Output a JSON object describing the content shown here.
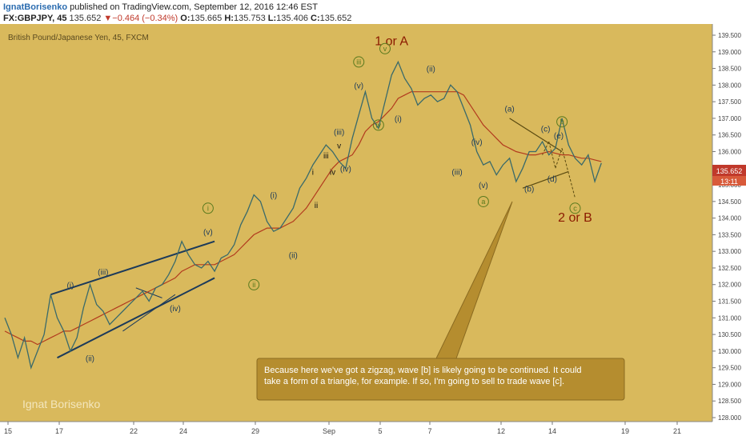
{
  "header": {
    "author": "IgnatBorisenko",
    "published_text": "published on TradingView.com, September 12, 2016 12:46 EST",
    "symbol": "FX:GBPJPY, 45",
    "last": "135.652",
    "change": "−0.464 (−0.34%)",
    "open_label": "O:",
    "open": "135.665",
    "high_label": "H:",
    "high": "135.753",
    "low_label": "L:",
    "low": "135.406",
    "close_label": "C:",
    "close": "135.652"
  },
  "chart_data": {
    "type": "line",
    "title": "British Pound/Japanese Yen, 45, FXCM",
    "watermark": "Ignat Borisenko",
    "xlabel": "",
    "ylabel": "",
    "ylim": [
      128.0,
      139.5
    ],
    "y_ticks": [
      "128.000",
      "128.500",
      "129.000",
      "129.500",
      "130.000",
      "130.500",
      "131.000",
      "131.500",
      "132.000",
      "132.500",
      "133.000",
      "133.500",
      "134.000",
      "134.500",
      "135.000",
      "135.500",
      "136.000",
      "136.500",
      "137.000",
      "137.500",
      "138.000",
      "138.500",
      "139.000",
      "139.500"
    ],
    "x_ticks": [
      "15",
      "17",
      "22",
      "24",
      "29",
      "Sep",
      "5",
      "7",
      "12",
      "14",
      "19",
      "21"
    ],
    "last_price_label": "135.652",
    "countdown_label": "13:11",
    "colors": {
      "background": "#d9b95c",
      "price": "#3a6a6a",
      "ma": "#b23a1e",
      "wave_primary": "#8b1a00",
      "wave_green": "#5a7a1e",
      "wave_blue": "#1c3a5a",
      "note_bg": "#b58d2f"
    },
    "series": [
      {
        "values": [
          131.0,
          130.5,
          129.8,
          130.4,
          129.5,
          130.0,
          130.5,
          131.7,
          131.0,
          130.6,
          130.0,
          130.4,
          131.3,
          132.0,
          131.4,
          131.2,
          130.8,
          131.0,
          131.2,
          131.4,
          131.6,
          131.8,
          131.5,
          131.9,
          132.0,
          132.3,
          132.7,
          133.3,
          132.9,
          132.6,
          132.5,
          132.7,
          132.4,
          132.8,
          132.9,
          133.2,
          133.8,
          134.2,
          134.7,
          134.5,
          133.9,
          133.6,
          133.7,
          134.0,
          134.3,
          134.9,
          135.2,
          135.6,
          135.9,
          136.2,
          136.0,
          135.7,
          135.5,
          136.4,
          137.1,
          137.8,
          137.0,
          136.7,
          137.5,
          138.3,
          138.7,
          138.2,
          137.9,
          137.4,
          137.6,
          137.7,
          137.5,
          137.6,
          138.0,
          137.8,
          137.3,
          136.8,
          136.0,
          135.6,
          135.7,
          135.3,
          135.6,
          135.8,
          135.1,
          135.5,
          136.0,
          136.0,
          136.3,
          135.9,
          136.1,
          137.0,
          136.2,
          135.8,
          135.6,
          135.9,
          135.1,
          135.652
        ]
      },
      {
        "values": [
          130.6,
          130.5,
          130.4,
          130.3,
          130.3,
          130.2,
          130.3,
          130.4,
          130.5,
          130.6,
          130.6,
          130.7,
          130.8,
          130.9,
          131.0,
          131.1,
          131.2,
          131.3,
          131.4,
          131.5,
          131.6,
          131.7,
          131.8,
          131.9,
          132.0,
          132.1,
          132.2,
          132.4,
          132.5,
          132.6,
          132.6,
          132.6,
          132.6,
          132.7,
          132.8,
          132.9,
          133.1,
          133.3,
          133.5,
          133.6,
          133.7,
          133.7,
          133.7,
          133.8,
          133.9,
          134.1,
          134.3,
          134.6,
          134.9,
          135.2,
          135.5,
          135.7,
          135.8,
          135.9,
          136.2,
          136.6,
          136.8,
          136.9,
          137.1,
          137.3,
          137.6,
          137.7,
          137.8,
          137.8,
          137.8,
          137.8,
          137.8,
          137.8,
          137.8,
          137.8,
          137.7,
          137.4,
          137.1,
          136.8,
          136.6,
          136.4,
          136.2,
          136.1,
          136.0,
          135.95,
          135.9,
          135.9,
          135.95,
          136.0,
          135.95,
          135.9,
          135.9,
          135.85,
          135.8,
          135.8,
          135.75,
          135.7
        ]
      }
    ],
    "annotations": [
      {
        "text": "1 or A",
        "x": 59,
        "y": 139.2,
        "style": "major"
      },
      {
        "text": "2 or B",
        "x": 87,
        "y": 133.9,
        "style": "major"
      },
      {
        "text": "i",
        "x": 31,
        "y": 134.2,
        "style": "green-circle"
      },
      {
        "text": "ii",
        "x": 38,
        "y": 131.9,
        "style": "green-circle"
      },
      {
        "text": "iii",
        "x": 54,
        "y": 138.6,
        "style": "green-circle"
      },
      {
        "text": "iv",
        "x": 57,
        "y": 136.7,
        "style": "green-circle"
      },
      {
        "text": "v",
        "x": 58,
        "y": 139.0,
        "style": "green-circle"
      },
      {
        "text": "a",
        "x": 73,
        "y": 134.4,
        "style": "green-circle"
      },
      {
        "text": "b",
        "x": 85,
        "y": 136.8,
        "style": "green-circle"
      },
      {
        "text": "c",
        "x": 87,
        "y": 134.2,
        "style": "green-circle"
      },
      {
        "text": "(i)",
        "x": 10,
        "y": 131.9,
        "style": "wave"
      },
      {
        "text": "(ii)",
        "x": 13,
        "y": 129.7,
        "style": "wave"
      },
      {
        "text": "(iii)",
        "x": 15,
        "y": 132.3,
        "style": "wave"
      },
      {
        "text": "(iv)",
        "x": 26,
        "y": 131.2,
        "style": "wave"
      },
      {
        "text": "(v)",
        "x": 31,
        "y": 133.5,
        "style": "wave"
      },
      {
        "text": "(i)",
        "x": 41,
        "y": 134.6,
        "style": "wave"
      },
      {
        "text": "(ii)",
        "x": 44,
        "y": 132.8,
        "style": "wave"
      },
      {
        "text": "i",
        "x": 47,
        "y": 135.3,
        "style": "wave-black"
      },
      {
        "text": "ii",
        "x": 47.5,
        "y": 134.3,
        "style": "wave-black"
      },
      {
        "text": "iii",
        "x": 49,
        "y": 135.8,
        "style": "wave-black"
      },
      {
        "text": "iv",
        "x": 50,
        "y": 135.3,
        "style": "wave-black"
      },
      {
        "text": "v",
        "x": 51,
        "y": 136.1,
        "style": "wave-black"
      },
      {
        "text": "(iii)",
        "x": 51,
        "y": 136.5,
        "style": "wave"
      },
      {
        "text": "(iv)",
        "x": 52,
        "y": 135.4,
        "style": "wave"
      },
      {
        "text": "(v)",
        "x": 54,
        "y": 137.9,
        "style": "wave"
      },
      {
        "text": "(i)",
        "x": 60,
        "y": 136.9,
        "style": "wave"
      },
      {
        "text": "(ii)",
        "x": 65,
        "y": 138.4,
        "style": "wave"
      },
      {
        "text": "(iii)",
        "x": 69,
        "y": 135.3,
        "style": "wave"
      },
      {
        "text": "(iv)",
        "x": 72,
        "y": 136.2,
        "style": "wave"
      },
      {
        "text": "(v)",
        "x": 73,
        "y": 134.9,
        "style": "wave"
      },
      {
        "text": "(a)",
        "x": 77,
        "y": 137.2,
        "style": "wave"
      },
      {
        "text": "(b)",
        "x": 80,
        "y": 134.8,
        "style": "wave"
      },
      {
        "text": "(c)",
        "x": 82.5,
        "y": 136.6,
        "style": "wave"
      },
      {
        "text": "(d)",
        "x": 83.5,
        "y": 135.1,
        "style": "wave"
      },
      {
        "text": "(e)",
        "x": 84.5,
        "y": 136.4,
        "style": "wave"
      }
    ],
    "note": "Because here we've got a zigzag, wave [b] is likely going to be continued. It could take a form of a triangle, for example. If so, I'm going to sell to trade wave [c]."
  }
}
